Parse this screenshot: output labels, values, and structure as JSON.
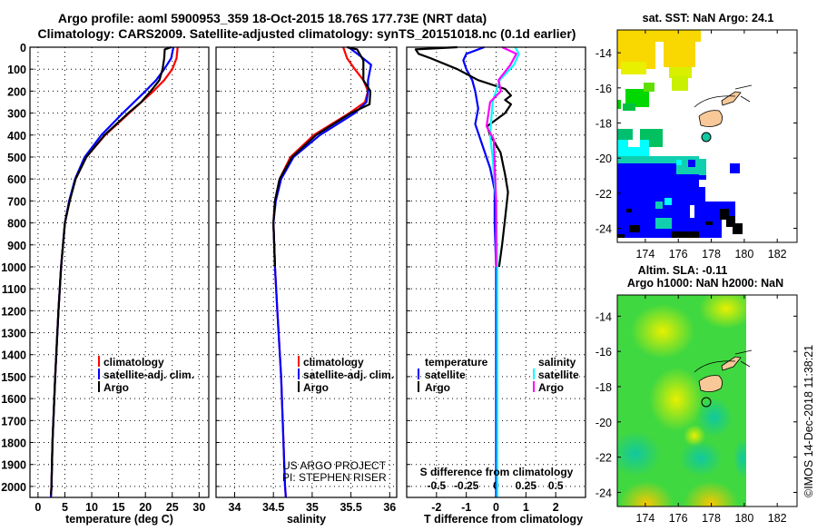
{
  "title": {
    "line1": "Argo profile: aoml 5900953_359 18-Oct-2015 18.76S 177.73E (NRT data)",
    "line2": "Climatology: CARS2009. Satellite-adjusted climatology: synTS_20151018.nc (0.1d earlier)"
  },
  "colors": {
    "climatology": "#ff0000",
    "satellite": "#0000ff",
    "argo": "#000000",
    "sal_satellite": "#00ffff",
    "sal_argo": "#ff00ff"
  },
  "depth_ticks": [
    "0",
    "100",
    "200",
    "300",
    "400",
    "500",
    "600",
    "700",
    "800",
    "900",
    "1000",
    "1100",
    "1200",
    "1300",
    "1400",
    "1500",
    "1600",
    "1700",
    "1800",
    "1900",
    "2000"
  ],
  "chart_data": [
    {
      "type": "line",
      "name": "temperature",
      "xlabel": "temperature (deg C)",
      "ylabel": "depth",
      "xlim": [
        -1.5,
        31.8
      ],
      "ylim": [
        2050,
        0
      ],
      "xticks": [
        "0",
        "5",
        "10",
        "15",
        "20",
        "25",
        "30"
      ],
      "xtick_values": [
        0,
        5,
        10,
        15,
        20,
        25,
        30
      ],
      "grid": true,
      "legend": [
        "climatology",
        "satellite-adj. clim.",
        "Argo"
      ],
      "legend_position": "bottom-right",
      "series": [
        {
          "name": "climatology",
          "color": "#ff0000",
          "points": [
            [
              26,
              0
            ],
            [
              25.8,
              50
            ],
            [
              25,
              100
            ],
            [
              23.5,
              150
            ],
            [
              21.5,
              200
            ],
            [
              17,
              300
            ],
            [
              12.5,
              400
            ],
            [
              9,
              500
            ],
            [
              7,
              600
            ],
            [
              5.8,
              700
            ],
            [
              5,
              800
            ],
            [
              4.3,
              1000
            ],
            [
              3.8,
              1200
            ],
            [
              3.2,
              1500
            ],
            [
              2.7,
              1800
            ],
            [
              2.5,
              2000
            ],
            [
              2.4,
              2050
            ]
          ]
        },
        {
          "name": "satellite-adj. clim.",
          "color": "#0000ff",
          "points": [
            [
              25.2,
              0
            ],
            [
              24.8,
              50
            ],
            [
              23.5,
              100
            ],
            [
              22,
              150
            ],
            [
              20,
              200
            ],
            [
              15.8,
              300
            ],
            [
              11.8,
              400
            ],
            [
              8.7,
              500
            ],
            [
              6.9,
              600
            ],
            [
              5.8,
              700
            ],
            [
              5,
              800
            ],
            [
              4.3,
              1000
            ],
            [
              3.8,
              1200
            ],
            [
              3.2,
              1500
            ],
            [
              2.7,
              1800
            ],
            [
              2.5,
              2000
            ],
            [
              2.4,
              2050
            ]
          ]
        },
        {
          "name": "Argo",
          "color": "#000000",
          "points": [
            [
              24.8,
              0
            ],
            [
              23.6,
              10
            ],
            [
              23.5,
              50
            ],
            [
              23.2,
              100
            ],
            [
              22.6,
              150
            ],
            [
              21,
              200
            ],
            [
              19.2,
              250
            ],
            [
              16.8,
              300
            ],
            [
              12.4,
              400
            ],
            [
              9,
              500
            ],
            [
              7,
              600
            ],
            [
              5.9,
              700
            ],
            [
              5,
              800
            ],
            [
              4.3,
              1000
            ],
            [
              3.8,
              1200
            ],
            [
              3.2,
              1500
            ],
            [
              2.7,
              1800
            ],
            [
              2.5,
              2000
            ],
            [
              2.4,
              2040
            ]
          ]
        }
      ]
    },
    {
      "type": "line",
      "name": "salinity",
      "xlabel": "salinity",
      "xlim": [
        33.76,
        36.09
      ],
      "ylim": [
        2050,
        0
      ],
      "xticks": [
        "34",
        "34.5",
        "35",
        "35.5",
        "36"
      ],
      "xtick_values": [
        34,
        34.5,
        35,
        35.5,
        36
      ],
      "grid": true,
      "legend": [
        "climatology",
        "satellite-adj. clim.",
        "Argo"
      ],
      "legend_position": "bottom-right",
      "annotations": [
        "US ARGO PROJECT",
        "PI: STEPHEN RISER"
      ],
      "series": [
        {
          "name": "climatology",
          "color": "#ff0000",
          "points": [
            [
              35.4,
              0
            ],
            [
              35.45,
              50
            ],
            [
              35.55,
              100
            ],
            [
              35.66,
              150
            ],
            [
              35.72,
              200
            ],
            [
              35.68,
              250
            ],
            [
              35.48,
              300
            ],
            [
              35.02,
              400
            ],
            [
              34.72,
              500
            ],
            [
              34.58,
              600
            ],
            [
              34.52,
              700
            ],
            [
              34.5,
              800
            ],
            [
              34.51,
              900
            ],
            [
              34.52,
              1000
            ],
            [
              34.55,
              1200
            ],
            [
              34.6,
              1500
            ],
            [
              34.65,
              2000
            ],
            [
              34.66,
              2050
            ]
          ]
        },
        {
          "name": "satellite-adj. clim.",
          "color": "#0000ff",
          "points": [
            [
              35.47,
              0
            ],
            [
              35.62,
              40
            ],
            [
              35.76,
              80
            ],
            [
              35.72,
              150
            ],
            [
              35.72,
              200
            ],
            [
              35.7,
              250
            ],
            [
              35.55,
              300
            ],
            [
              35.1,
              400
            ],
            [
              34.76,
              500
            ],
            [
              34.6,
              600
            ],
            [
              34.53,
              700
            ],
            [
              34.5,
              800
            ],
            [
              34.51,
              900
            ],
            [
              34.52,
              1000
            ],
            [
              34.55,
              1200
            ],
            [
              34.6,
              1500
            ],
            [
              34.65,
              2000
            ],
            [
              34.66,
              2050
            ]
          ]
        },
        {
          "name": "Argo",
          "color": "#000000",
          "points": [
            [
              35.45,
              0
            ],
            [
              35.58,
              10
            ],
            [
              35.66,
              60
            ],
            [
              35.66,
              150
            ],
            [
              35.75,
              200
            ],
            [
              35.74,
              260
            ],
            [
              35.5,
              300
            ],
            [
              35.05,
              400
            ],
            [
              34.74,
              500
            ],
            [
              34.58,
              600
            ],
            [
              34.52,
              700
            ],
            [
              34.5,
              800
            ],
            [
              34.51,
              900
            ],
            [
              34.52,
              1000
            ]
          ]
        }
      ]
    },
    {
      "type": "line",
      "name": "differences",
      "xlabel": "T difference from climatology",
      "x2label": "S difference from climatology",
      "xlim": [
        -3,
        3
      ],
      "x2lim": [
        -0.75,
        0.75
      ],
      "ylim": [
        2050,
        0
      ],
      "xticks": [
        "-2",
        "-1",
        "0",
        "1",
        "2"
      ],
      "xtick_values": [
        -2,
        -1,
        0,
        1,
        2
      ],
      "x2ticks": [
        "-0.5",
        "-0.25",
        "0",
        "0.25",
        "0.5"
      ],
      "x2tick_values": [
        -0.5,
        -0.25,
        0,
        0.25,
        0.5
      ],
      "grid": true,
      "legend_temperature_title": "temperature",
      "legend_salinity_title": "salinity",
      "legend_position": "bottom",
      "series": [
        {
          "name": "satellite",
          "group": "temperature",
          "axis": "T",
          "color": "#0000ff",
          "points": [
            [
              -0.4,
              0
            ],
            [
              -1,
              30
            ],
            [
              -1.1,
              60
            ],
            [
              -1.0,
              100
            ],
            [
              -0.8,
              150
            ],
            [
              -0.7,
              200
            ],
            [
              -0.6,
              280
            ],
            [
              -0.7,
              350
            ],
            [
              -0.45,
              450
            ],
            [
              -0.2,
              550
            ],
            [
              -0.05,
              650
            ],
            [
              -0.05,
              800
            ],
            [
              0,
              1000
            ],
            [
              0,
              2050
            ]
          ]
        },
        {
          "name": "Argo",
          "group": "temperature",
          "axis": "T",
          "color": "#000000",
          "points": [
            [
              -1.3,
              0
            ],
            [
              -2.7,
              10
            ],
            [
              -2.6,
              30
            ],
            [
              -2.2,
              50
            ],
            [
              -1.3,
              100
            ],
            [
              -0.6,
              150
            ],
            [
              0.3,
              190
            ],
            [
              0.5,
              220
            ],
            [
              0.3,
              240
            ],
            [
              0.5,
              260
            ],
            [
              0.3,
              300
            ],
            [
              -0.3,
              360
            ],
            [
              -0.2,
              400
            ],
            [
              0.15,
              480
            ],
            [
              0.3,
              580
            ],
            [
              0.4,
              660
            ],
            [
              0.3,
              780
            ],
            [
              0.2,
              900
            ],
            [
              0.1,
              1000
            ]
          ]
        },
        {
          "name": "satellite",
          "group": "salinity",
          "axis": "S",
          "color": "#00ffff",
          "points": [
            [
              0.16,
              0
            ],
            [
              0.19,
              30
            ],
            [
              0.15,
              80
            ],
            [
              0.03,
              150
            ],
            [
              -0.03,
              250
            ],
            [
              -0.05,
              400
            ],
            [
              -0.03,
              500
            ],
            [
              0,
              700
            ],
            [
              0.01,
              1000
            ],
            [
              0.01,
              2050
            ]
          ]
        },
        {
          "name": "Argo",
          "group": "salinity",
          "axis": "S",
          "color": "#ff00ff",
          "points": [
            [
              0.05,
              0
            ],
            [
              0.17,
              30
            ],
            [
              0.12,
              80
            ],
            [
              0.02,
              150
            ],
            [
              0.04,
              200
            ],
            [
              -0.05,
              250
            ],
            [
              -0.08,
              360
            ],
            [
              -0.02,
              420
            ],
            [
              0,
              700
            ],
            [
              0,
              1000
            ]
          ]
        }
      ]
    }
  ],
  "maps": {
    "sst": {
      "title": "sat. SST: NaN Argo: 24.1",
      "lat_ticks": [
        "-14",
        "-16",
        "-18",
        "-20",
        "-22",
        "-24"
      ],
      "lon_ticks": [
        "174",
        "176",
        "178",
        "180",
        "182"
      ]
    },
    "sla": {
      "title1": "Altim. SLA: -0.11",
      "title2": "Argo h1000: NaN h2000: NaN",
      "lat_ticks": [
        "-14",
        "-16",
        "-18",
        "-20",
        "-22",
        "-24"
      ],
      "lon_ticks": [
        "174",
        "176",
        "178",
        "180",
        "182"
      ]
    }
  },
  "credit": "©IMOS 14-Dec-2018 11:38:21"
}
